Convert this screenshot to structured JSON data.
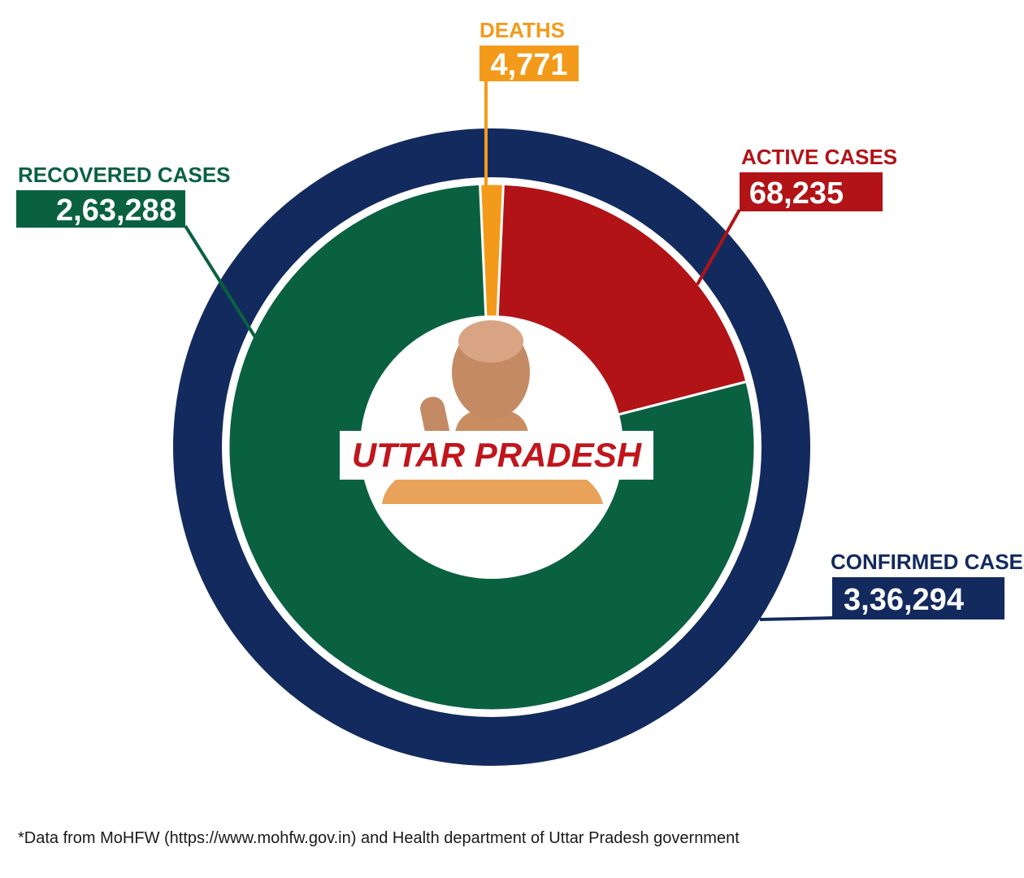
{
  "chart_data": {
    "type": "pie",
    "center_label": "UTTAR PRADESH",
    "outer_ring": {
      "name": "CONFIRMED CASES",
      "label": "3,36,294",
      "value": 336294,
      "color": "#132a5e"
    },
    "slices": [
      {
        "key": "deaths",
        "name": "DEATHS",
        "label": "4,771",
        "value": 4771,
        "color": "#f39a1b"
      },
      {
        "key": "active",
        "name": "ACTIVE CASES",
        "label": "68,235",
        "value": 68235,
        "color": "#b11317"
      },
      {
        "key": "recovered",
        "name": "RECOVERED CASES",
        "label": "2,63,288",
        "value": 263288,
        "color": "#0a6141"
      }
    ]
  },
  "footnote": "*Data from MoHFW (https://www.mohfw.gov.in) and Health department of Uttar Pradesh government"
}
